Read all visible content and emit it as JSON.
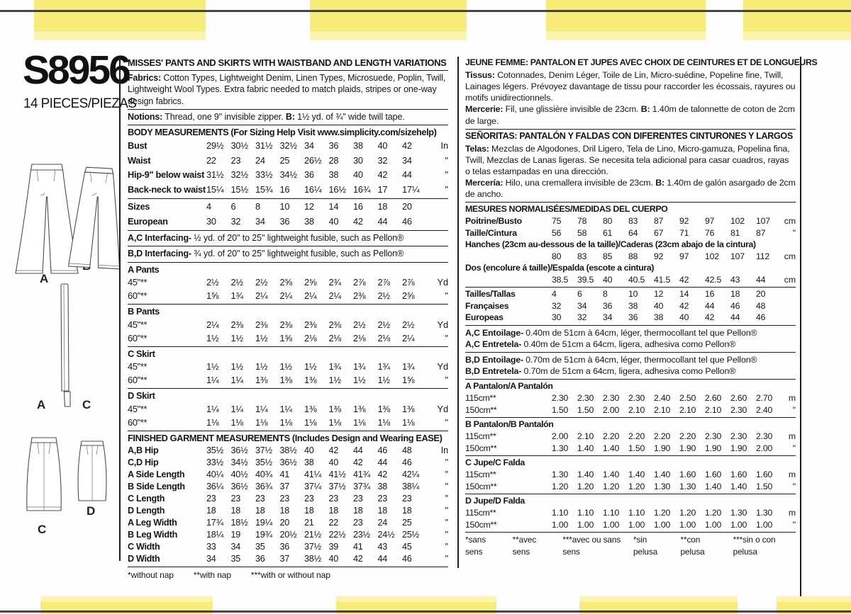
{
  "left": {
    "pattern_number": "S8956",
    "pieces_label": "14 PIECES/PIEZAS",
    "figure_labels": {
      "pants_a": "A",
      "pants_b": "B",
      "band_a": "A",
      "band_c": "C",
      "skirt_c": "C",
      "skirt_d": "D"
    }
  },
  "en": {
    "title": "MISSES' PANTS AND SKIRTS WITH WAISTBAND AND LENGTH VARIATIONS",
    "fabrics": {
      "label": "Fabrics:",
      "text": " Cotton Types, Lightweight Denim, Linen Types, Microsuede, Poplin, Twill, Lightweight Wool Types. Extra fabric needed to match plaids, stripes or one-way design fabrics."
    },
    "notions": {
      "label": "Notions:",
      "before_b": " Thread, one 9\" invisible zipper. ",
      "b_label": "B:",
      "after_b": " 1½ yd. of ¾\" wide twill tape."
    },
    "body_measurements": {
      "header": "BODY MEASUREMENTS (For Sizing Help Visit www.simplicity.com/sizehelp)",
      "rows": [
        {
          "label": "Bust",
          "values": [
            "29½",
            "30½",
            "31½",
            "32½",
            "34",
            "36",
            "38",
            "40",
            "42"
          ],
          "unit": "In"
        },
        {
          "label": "Waist",
          "values": [
            "22",
            "23",
            "24",
            "25",
            "26½",
            "28",
            "30",
            "32",
            "34"
          ],
          "unit": "\""
        },
        {
          "label": "Hip-9\" below waist",
          "values": [
            "31½",
            "32½",
            "33½",
            "34½",
            "36",
            "38",
            "40",
            "42",
            "44"
          ],
          "unit": "\""
        },
        {
          "label": "Back-neck to waist",
          "values": [
            "15¼",
            "15½",
            "15¾",
            "16",
            "16¼",
            "16½",
            "16¾",
            "17",
            "17¼"
          ],
          "unit": "\""
        }
      ]
    },
    "sizes_rows": [
      {
        "label": "Sizes",
        "values": [
          "4",
          "6",
          "8",
          "10",
          "12",
          "14",
          "16",
          "18",
          "20"
        ],
        "unit": ""
      },
      {
        "label": "European",
        "values": [
          "30",
          "32",
          "34",
          "36",
          "38",
          "40",
          "42",
          "44",
          "46"
        ],
        "unit": ""
      }
    ],
    "interfacing_ac": {
      "label": "A,C Interfacing-",
      "text": " ½ yd. of 20\" to 25\" lightweight fusible, such as Pellon®"
    },
    "interfacing_bd": {
      "label": "B,D Interfacing-",
      "text": " ¾ yd. of 20\" to 25\" lightweight fusible, such as Pellon®"
    },
    "yardage_sections": [
      {
        "header": "A Pants",
        "rows": [
          {
            "label": "45\"**",
            "plain": true,
            "values": [
              "2½",
              "2½",
              "2½",
              "2⅝",
              "2⅝",
              "2¾",
              "2⅞",
              "2⅞",
              "2⅞"
            ],
            "unit": "Yd"
          },
          {
            "label": "60\"**",
            "plain": true,
            "values": [
              "1⅝",
              "1¾",
              "2¼",
              "2¼",
              "2¼",
              "2¼",
              "2⅜",
              "2½",
              "2⅝"
            ],
            "unit": "\""
          }
        ]
      },
      {
        "header": "B Pants",
        "rows": [
          {
            "label": "45\"**",
            "plain": true,
            "values": [
              "2¼",
              "2⅜",
              "2⅜",
              "2⅜",
              "2⅜",
              "2⅜",
              "2½",
              "2½",
              "2½"
            ],
            "unit": "Yd"
          },
          {
            "label": "60\"**",
            "plain": true,
            "values": [
              "1½",
              "1½",
              "1½",
              "1⅝",
              "2⅛",
              "2⅛",
              "2⅛",
              "2⅛",
              "2¼"
            ],
            "unit": "\""
          }
        ]
      },
      {
        "header": "C Skirt",
        "rows": [
          {
            "label": "45\"**",
            "plain": true,
            "values": [
              "1½",
              "1½",
              "1½",
              "1½",
              "1½",
              "1¾",
              "1¾",
              "1¾",
              "1¾"
            ],
            "unit": "Yd"
          },
          {
            "label": "60\"**",
            "plain": true,
            "values": [
              "1¼",
              "1¼",
              "1⅜",
              "1⅜",
              "1⅜",
              "1½",
              "1½",
              "1½",
              "1⅝"
            ],
            "unit": "\""
          }
        ]
      },
      {
        "header": "D Skirt",
        "rows": [
          {
            "label": "45\"**",
            "plain": true,
            "values": [
              "1¼",
              "1¼",
              "1¼",
              "1¼",
              "1⅜",
              "1⅜",
              "1⅜",
              "1⅜",
              "1⅜"
            ],
            "unit": "Yd"
          },
          {
            "label": "60\"**",
            "plain": true,
            "values": [
              "1⅛",
              "1⅛",
              "1⅛",
              "1⅛",
              "1⅛",
              "1⅛",
              "1⅛",
              "1⅛",
              "1⅛"
            ],
            "unit": "\""
          }
        ]
      }
    ],
    "finished": {
      "header": "FINISHED GARMENT MEASUREMENTS (Includes Design and Wearing EASE)",
      "rows": [
        {
          "label": "A,B Hip",
          "values": [
            "35½",
            "36½",
            "37½",
            "38½",
            "40",
            "42",
            "44",
            "46",
            "48"
          ],
          "unit": "In"
        },
        {
          "label": "C,D Hip",
          "values": [
            "33½",
            "34½",
            "35½",
            "36½",
            "38",
            "40",
            "42",
            "44",
            "46"
          ],
          "unit": "\""
        },
        {
          "label": "A Side Length",
          "values": [
            "40¼",
            "40½",
            "40¾",
            "41",
            "41¼",
            "41½",
            "41¾",
            "42",
            "42¼"
          ],
          "unit": "\""
        },
        {
          "label": "B Side Length",
          "values": [
            "36¼",
            "36½",
            "36¾",
            "37",
            "37¼",
            "37½",
            "37¾",
            "38",
            "38¼"
          ],
          "unit": "\""
        },
        {
          "label": "C Length",
          "values": [
            "23",
            "23",
            "23",
            "23",
            "23",
            "23",
            "23",
            "23",
            "23"
          ],
          "unit": "\""
        },
        {
          "label": "D Length",
          "values": [
            "18",
            "18",
            "18",
            "18",
            "18",
            "18",
            "18",
            "18",
            "18"
          ],
          "unit": "\""
        },
        {
          "label": "A Leg Width",
          "values": [
            "17¾",
            "18½",
            "19¼",
            "20",
            "21",
            "22",
            "23",
            "24",
            "25"
          ],
          "unit": "\""
        },
        {
          "label": "B Leg Width",
          "values": [
            "18¼",
            "19",
            "19¾",
            "20½",
            "21½",
            "22½",
            "23½",
            "24½",
            "25½"
          ],
          "unit": "\""
        },
        {
          "label": "C Width",
          "values": [
            "33",
            "34",
            "35",
            "36",
            "37½",
            "39",
            "41",
            "43",
            "45"
          ],
          "unit": "\""
        },
        {
          "label": "D Width",
          "values": [
            "34",
            "35",
            "36",
            "37",
            "38½",
            "40",
            "42",
            "44",
            "46"
          ],
          "unit": "\""
        }
      ]
    },
    "footnote": [
      "*without nap",
      "**with nap",
      "***with or without nap"
    ]
  },
  "fres": {
    "title": "JEUNE FEMME: PANTALON ET JUPES AVEC CHOIX DE CEINTURES ET DE LONGUEURS",
    "tissus": {
      "label": "Tissus:",
      "text": " Cotonnades, Denim Léger, Toile de Lin, Micro-suédine, Popeline fine, Twill, Lainages légers. Prévoyez davantage de tissu pour raccorder les écossais, rayures ou motifs unidirectionnels."
    },
    "mercerie": {
      "label": "Mercerie:",
      "before_b": " Fil, une glissière invisible de 23cm. ",
      "b_label": "B:",
      "after_b": " 1.40m de talonnette de coton de 2cm de large."
    },
    "title_es": "SEÑORITAS: PANTALÓN Y FALDAS CON DIFERENTES CINTURONES Y LARGOS",
    "telas": {
      "label": "Telas:",
      "text": " Mezclas de Algodones, Dril Ligero, Tela de Lino, Micro-gamuza, Popelina fina, Twill, Mezclas de Lanas ligeras. Se necesita tela adicional para casar cuadros, rayas o telas estampadas en una dirección."
    },
    "merceria": {
      "label": "Mercería:",
      "before_b": " Hilo, una cremallera invisible de 23cm. ",
      "b_label": "B:",
      "after_b": " 1.40m de galón asargado de 2cm de ancho."
    },
    "mesures": {
      "header": "MESURES NORMALISÉES/MEDIDAS DEL CUERPO",
      "rows": [
        {
          "label": "Poitrine/Busto",
          "values": [
            "75",
            "78",
            "80",
            "83",
            "87",
            "92",
            "97",
            "102",
            "107"
          ],
          "unit": "cm"
        },
        {
          "label": "Taille/Cintura",
          "values": [
            "56",
            "58",
            "61",
            "64",
            "67",
            "71",
            "76",
            "81",
            "87"
          ],
          "unit": "\""
        }
      ],
      "hanches_label": "Hanches (23cm au-dessous de la taille)/Caderas (23cm abajo de la cintura)",
      "hanches_rows": [
        {
          "label": "",
          "values": [
            "80",
            "83",
            "85",
            "88",
            "92",
            "97",
            "102",
            "107",
            "112"
          ],
          "unit": "cm"
        }
      ],
      "dos_label": "Dos (encolure á taille)/Espalda (escote a cintura)",
      "dos_rows": [
        {
          "label": "",
          "values": [
            "38.5",
            "39.5",
            "40",
            "40.5",
            "41.5",
            "42",
            "42.5",
            "43",
            "44"
          ],
          "unit": "cm"
        }
      ]
    },
    "tailles_rows": [
      {
        "label": "Tailles/Tallas",
        "values": [
          "4",
          "6",
          "8",
          "10",
          "12",
          "14",
          "16",
          "18",
          "20"
        ],
        "unit": ""
      },
      {
        "label": "Françaises",
        "values": [
          "32",
          "34",
          "36",
          "38",
          "40",
          "42",
          "44",
          "46",
          "48"
        ],
        "unit": ""
      },
      {
        "label": "Europeas",
        "values": [
          "30",
          "32",
          "34",
          "36",
          "38",
          "40",
          "42",
          "44",
          "46"
        ],
        "unit": ""
      }
    ],
    "entoilage_ac": [
      {
        "label": "A,C Entoilage-",
        "text": " 0.40m de 51cm à 64cm, léger, thermocollant tel que Pellon®"
      },
      {
        "label": "A,C Entretela-",
        "text": " 0.40m de 51cm a 64cm, ligera, adhesiva como Pellon®"
      }
    ],
    "entoilage_bd": [
      {
        "label": "B,D Entoilage-",
        "text": " 0.70m de 51cm à 64cm, léger, thermocollant tel que Pellon®"
      },
      {
        "label": "B,D Entretela-",
        "text": " 0.70m de 51cm a 64cm, ligera, adhesiva como Pellon®"
      }
    ],
    "metrage_sections": [
      {
        "header": "A Pantalon/A Pantalón",
        "rows": [
          {
            "label": "115cm**",
            "plain": true,
            "values": [
              "2.30",
              "2.30",
              "2.30",
              "2.30",
              "2.40",
              "2.50",
              "2.60",
              "2.60",
              "2.70"
            ],
            "unit": "m"
          },
          {
            "label": "150cm**",
            "plain": true,
            "values": [
              "1.50",
              "1.50",
              "2.00",
              "2.10",
              "2.10",
              "2.10",
              "2.10",
              "2.30",
              "2.40"
            ],
            "unit": "\""
          }
        ]
      },
      {
        "header": "B Pantalon/B Pantalón",
        "rows": [
          {
            "label": "115cm**",
            "plain": true,
            "values": [
              "2.00",
              "2.10",
              "2.20",
              "2.20",
              "2.20",
              "2.20",
              "2.30",
              "2.30",
              "2.30"
            ],
            "unit": "m"
          },
          {
            "label": "150cm**",
            "plain": true,
            "values": [
              "1.30",
              "1.40",
              "1.40",
              "1.50",
              "1.90",
              "1.90",
              "1.90",
              "1.90",
              "2.00"
            ],
            "unit": "\""
          }
        ]
      },
      {
        "header": "C Jupe/C Falda",
        "rows": [
          {
            "label": "115cm**",
            "plain": true,
            "values": [
              "1.30",
              "1.40",
              "1.40",
              "1.40",
              "1.40",
              "1.60",
              "1.60",
              "1.60",
              "1.60"
            ],
            "unit": "m"
          },
          {
            "label": "150cm**",
            "plain": true,
            "values": [
              "1.20",
              "1.20",
              "1.20",
              "1.20",
              "1.30",
              "1.30",
              "1.40",
              "1.40",
              "1.50"
            ],
            "unit": "\""
          }
        ]
      },
      {
        "header": "D Jupe/D Falda",
        "rows": [
          {
            "label": "115cm**",
            "plain": true,
            "values": [
              "1.10",
              "1.10",
              "1.10",
              "1.10",
              "1.20",
              "1.20",
              "1.20",
              "1.30",
              "1.30"
            ],
            "unit": "m"
          },
          {
            "label": "150cm**",
            "plain": true,
            "values": [
              "1.00",
              "1.00",
              "1.00",
              "1.00",
              "1.00",
              "1.00",
              "1.00",
              "1.00",
              "1.00"
            ],
            "unit": "\""
          }
        ]
      }
    ],
    "footnote_fr": [
      "*sans sens",
      "**avec sens",
      "***avec ou sans sens"
    ],
    "footnote_es": [
      "*sin pelusa",
      "**con pelusa",
      "***sin o con pelusa"
    ]
  },
  "colors": {
    "accent_yellow": "#f8ec78",
    "edge_line": "#454545",
    "ink": "#161616"
  }
}
